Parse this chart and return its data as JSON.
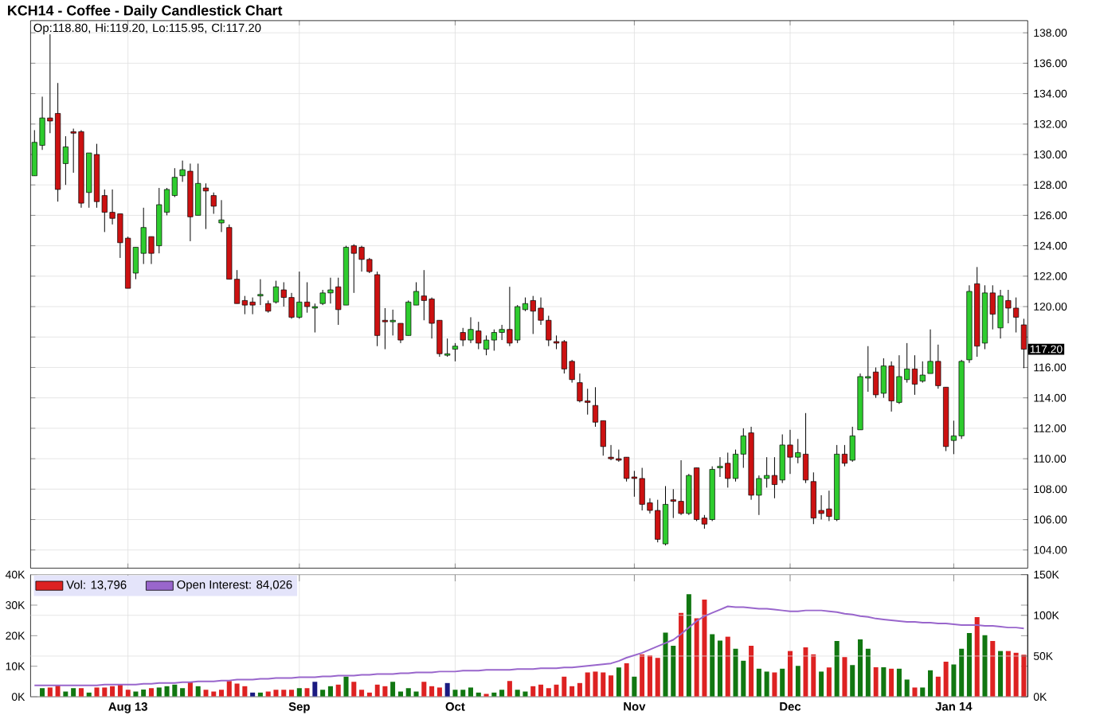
{
  "chart_data": [
    {
      "type": "candlestick",
      "title": "KCH14 - Coffee - Daily Candlestick Chart",
      "categories": [
        null,
        null,
        null,
        null,
        null,
        null,
        null,
        null,
        null,
        null,
        null,
        null,
        null,
        null,
        null,
        null,
        null,
        null,
        null,
        null,
        null,
        null,
        null,
        null,
        null,
        null,
        null,
        null,
        null,
        null,
        null,
        null,
        null,
        null,
        null,
        null,
        null,
        null,
        null,
        null,
        null,
        null,
        null,
        null,
        null,
        null,
        null,
        null,
        null,
        null,
        null,
        null,
        null,
        null,
        null,
        null,
        null,
        null,
        null,
        null,
        null,
        null,
        null,
        null,
        null,
        null,
        null,
        null,
        null,
        null,
        null,
        null,
        null,
        null,
        null,
        null,
        null,
        null,
        null,
        null,
        null,
        null,
        null,
        null,
        null,
        null,
        null,
        null,
        null,
        null,
        null,
        null,
        null,
        null,
        null,
        null,
        null,
        null,
        null,
        null,
        null,
        null,
        null,
        null,
        null,
        null,
        null,
        null,
        null,
        null,
        null,
        null,
        null,
        null,
        null,
        null,
        null,
        null,
        null,
        null,
        null,
        null,
        null,
        null,
        null,
        null,
        null,
        null
      ],
      "ohlc": [
        [
          128.6,
          131.6,
          128.6,
          130.8
        ],
        [
          130.6,
          133.8,
          130.3,
          132.4
        ],
        [
          132.4,
          137.9,
          131.4,
          132.2
        ],
        [
          132.7,
          134.7,
          126.9,
          127.7
        ],
        [
          129.4,
          131.2,
          128.0,
          130.5
        ],
        [
          131.5,
          131.7,
          128.8,
          131.4
        ],
        [
          131.5,
          131.6,
          126.5,
          126.8
        ],
        [
          127.5,
          130.1,
          126.5,
          130.1
        ],
        [
          130.0,
          130.7,
          126.5,
          126.9
        ],
        [
          127.3,
          127.7,
          124.9,
          126.2
        ],
        [
          126.2,
          127.7,
          125.4,
          125.8
        ],
        [
          126.1,
          126.1,
          123.2,
          124.2
        ],
        [
          124.5,
          124.6,
          121.2,
          121.2
        ],
        [
          122.2,
          123.9,
          121.8,
          123.9
        ],
        [
          123.5,
          126.5,
          122.8,
          125.2
        ],
        [
          124.6,
          124.6,
          122.8,
          123.5
        ],
        [
          124.0,
          127.8,
          123.5,
          126.7
        ],
        [
          126.2,
          127.8,
          126.0,
          127.7
        ],
        [
          127.3,
          129.1,
          127.2,
          128.5
        ],
        [
          128.6,
          129.6,
          128.2,
          129.0
        ],
        [
          128.9,
          129.4,
          124.3,
          125.9
        ],
        [
          126.0,
          129.4,
          126.0,
          128.1
        ],
        [
          127.8,
          128.1,
          125.1,
          127.6
        ],
        [
          127.3,
          127.5,
          126.1,
          126.6
        ],
        [
          125.5,
          127.0,
          124.9,
          125.7
        ],
        [
          125.2,
          125.4,
          121.8,
          121.8
        ],
        [
          121.8,
          122.4,
          120.2,
          120.2
        ],
        [
          120.4,
          120.7,
          119.5,
          120.1
        ],
        [
          120.3,
          120.6,
          119.5,
          120.1
        ],
        [
          120.7,
          121.8,
          120.1,
          120.8
        ],
        [
          120.2,
          120.4,
          119.6,
          119.7
        ],
        [
          120.3,
          121.7,
          120.2,
          121.3
        ],
        [
          121.1,
          121.6,
          120.0,
          120.6
        ],
        [
          120.6,
          120.9,
          119.2,
          119.3
        ],
        [
          119.3,
          122.3,
          119.2,
          120.3
        ],
        [
          120.3,
          121.6,
          119.6,
          120.0
        ],
        [
          119.9,
          120.2,
          118.3,
          120.0
        ],
        [
          120.2,
          121.1,
          120.1,
          120.9
        ],
        [
          120.9,
          121.9,
          120.2,
          121.1
        ],
        [
          121.3,
          121.9,
          118.8,
          119.8
        ],
        [
          120.1,
          124.0,
          120.1,
          123.9
        ],
        [
          124.0,
          124.1,
          120.9,
          123.5
        ],
        [
          123.9,
          124.0,
          122.3,
          123.1
        ],
        [
          123.1,
          123.2,
          122.2,
          122.3
        ],
        [
          122.1,
          122.3,
          117.4,
          118.1
        ],
        [
          119.1,
          119.9,
          117.2,
          119.0
        ],
        [
          119.0,
          119.8,
          118.1,
          119.1
        ],
        [
          118.9,
          118.9,
          117.6,
          117.8
        ],
        [
          118.1,
          120.4,
          118.1,
          120.3
        ],
        [
          120.1,
          121.6,
          120.1,
          121.0
        ],
        [
          120.7,
          122.4,
          119.1,
          120.4
        ],
        [
          120.5,
          120.6,
          117.9,
          118.9
        ],
        [
          119.1,
          119.1,
          116.7,
          116.9
        ],
        [
          116.8,
          117.9,
          116.7,
          116.9
        ],
        [
          117.2,
          117.6,
          116.4,
          117.4
        ],
        [
          118.3,
          118.6,
          117.4,
          117.8
        ],
        [
          117.8,
          119.3,
          117.6,
          118.5
        ],
        [
          118.4,
          119.0,
          117.2,
          117.6
        ],
        [
          117.2,
          118.1,
          116.8,
          117.8
        ],
        [
          117.8,
          118.5,
          117.1,
          118.3
        ],
        [
          118.3,
          118.8,
          117.8,
          118.5
        ],
        [
          118.5,
          121.3,
          117.4,
          117.6
        ],
        [
          117.8,
          120.1,
          117.6,
          120.0
        ],
        [
          119.8,
          120.6,
          119.7,
          120.2
        ],
        [
          120.4,
          120.7,
          118.2,
          119.7
        ],
        [
          119.9,
          120.6,
          118.8,
          119.1
        ],
        [
          119.1,
          119.4,
          117.4,
          117.8
        ],
        [
          117.7,
          118.1,
          117.2,
          117.6
        ],
        [
          117.7,
          117.8,
          115.6,
          115.9
        ],
        [
          116.4,
          116.5,
          115.0,
          115.2
        ],
        [
          115.0,
          115.6,
          113.7,
          113.8
        ],
        [
          113.8,
          114.6,
          112.9,
          113.7
        ],
        [
          113.5,
          114.7,
          112.1,
          112.4
        ],
        [
          112.5,
          112.5,
          110.2,
          110.8
        ],
        [
          110.1,
          110.9,
          109.9,
          110.0
        ],
        [
          110.0,
          110.6,
          109.8,
          109.9
        ],
        [
          110.1,
          110.1,
          108.5,
          108.7
        ],
        [
          108.8,
          109.2,
          107.5,
          108.7
        ],
        [
          108.7,
          109.4,
          106.6,
          107.0
        ],
        [
          107.1,
          107.4,
          106.4,
          106.6
        ],
        [
          106.6,
          107.3,
          104.5,
          104.7
        ],
        [
          104.4,
          108.2,
          104.3,
          107.0
        ],
        [
          107.3,
          108.0,
          106.1,
          107.2
        ],
        [
          107.2,
          109.9,
          106.3,
          106.4
        ],
        [
          106.4,
          109.0,
          106.3,
          108.9
        ],
        [
          109.4,
          109.4,
          105.9,
          106.0
        ],
        [
          106.1,
          106.3,
          105.4,
          105.7
        ],
        [
          106.0,
          109.5,
          105.9,
          109.3
        ],
        [
          109.4,
          110.1,
          108.8,
          109.5
        ],
        [
          109.7,
          110.4,
          108.1,
          108.7
        ],
        [
          108.7,
          110.6,
          108.5,
          110.3
        ],
        [
          110.3,
          112.0,
          109.4,
          111.5
        ],
        [
          111.7,
          112.1,
          107.3,
          107.6
        ],
        [
          107.6,
          108.9,
          106.3,
          108.7
        ],
        [
          108.7,
          110.1,
          108.1,
          108.9
        ],
        [
          108.9,
          110.1,
          107.4,
          108.3
        ],
        [
          108.6,
          111.6,
          108.4,
          110.9
        ],
        [
          110.9,
          111.9,
          109.0,
          110.1
        ],
        [
          110.1,
          111.3,
          109.7,
          110.4
        ],
        [
          110.3,
          113.0,
          108.4,
          108.6
        ],
        [
          108.5,
          109.1,
          105.7,
          106.1
        ],
        [
          106.6,
          107.6,
          106.0,
          106.4
        ],
        [
          106.7,
          107.9,
          105.9,
          106.2
        ],
        [
          106.0,
          110.9,
          105.9,
          110.3
        ],
        [
          110.3,
          110.9,
          109.5,
          109.7
        ],
        [
          109.9,
          112.1,
          109.8,
          111.5
        ],
        [
          111.9,
          115.6,
          111.9,
          115.4
        ],
        [
          115.3,
          117.4,
          114.4,
          115.4
        ],
        [
          115.7,
          116.0,
          114.0,
          114.2
        ],
        [
          114.3,
          116.6,
          114.0,
          116.1
        ],
        [
          116.1,
          116.4,
          113.1,
          113.8
        ],
        [
          113.7,
          116.8,
          113.6,
          115.4
        ],
        [
          115.2,
          117.6,
          115.0,
          115.9
        ],
        [
          115.9,
          116.8,
          114.2,
          114.9
        ],
        [
          115.1,
          116.4,
          115.0,
          115.5
        ],
        [
          115.6,
          118.5,
          115.6,
          116.4
        ],
        [
          116.4,
          117.5,
          114.6,
          114.8
        ],
        [
          114.7,
          114.7,
          110.5,
          110.8
        ],
        [
          111.2,
          112.5,
          110.3,
          111.5
        ],
        [
          111.5,
          116.5,
          111.3,
          116.4
        ],
        [
          116.5,
          121.4,
          116.3,
          121.0
        ],
        [
          121.5,
          122.6,
          116.7,
          117.4
        ],
        [
          117.6,
          121.4,
          117.2,
          120.9
        ],
        [
          120.9,
          121.4,
          118.5,
          119.5
        ],
        [
          118.6,
          121.1,
          117.9,
          120.7
        ],
        [
          120.4,
          121.1,
          118.9,
          119.9
        ],
        [
          119.9,
          120.6,
          118.3,
          119.3
        ],
        [
          118.8,
          119.2,
          115.95,
          117.2
        ]
      ],
      "ylim": [
        102.8,
        138.8
      ],
      "yticks": [
        {
          "value": 104,
          "label": "104.00"
        },
        {
          "value": 106,
          "label": "106.00"
        },
        {
          "value": 108,
          "label": "108.00"
        },
        {
          "value": 110,
          "label": "110.00"
        },
        {
          "value": 112,
          "label": "112.00"
        },
        {
          "value": 114,
          "label": "114.00"
        },
        {
          "value": 116,
          "label": "116.00"
        },
        {
          "value": 118,
          "label": null
        },
        {
          "value": 120,
          "label": "120.00"
        },
        {
          "value": 122,
          "label": "122.00"
        },
        {
          "value": 124,
          "label": "124.00"
        },
        {
          "value": 126,
          "label": "126.00"
        },
        {
          "value": 128,
          "label": "128.00"
        },
        {
          "value": 130,
          "label": "130.00"
        },
        {
          "value": 132,
          "label": "132.00"
        },
        {
          "value": 134,
          "label": "134.00"
        },
        {
          "value": 136,
          "label": "136.00"
        },
        {
          "value": 138,
          "label": "138.00"
        }
      ],
      "grid": true,
      "tick_labels": "y",
      "annotations": [
        "Op:118.80, Hi:119.20, Lo:115.95, Cl:117.20",
        "117.20"
      ]
    },
    {
      "type": "bar",
      "categories": [
        null,
        null,
        null,
        null,
        null,
        null,
        null,
        null,
        null,
        null,
        null,
        null,
        "Aug 13",
        null,
        null,
        null,
        null,
        null,
        null,
        null,
        null,
        null,
        null,
        null,
        null,
        null,
        null,
        null,
        null,
        null,
        null,
        null,
        null,
        null,
        "Sep",
        null,
        null,
        null,
        null,
        null,
        null,
        null,
        null,
        null,
        null,
        null,
        null,
        null,
        null,
        null,
        null,
        null,
        null,
        null,
        "Oct",
        null,
        null,
        null,
        null,
        null,
        null,
        null,
        null,
        null,
        null,
        null,
        null,
        null,
        null,
        null,
        null,
        null,
        null,
        null,
        null,
        null,
        null,
        "Nov",
        null,
        null,
        null,
        null,
        null,
        null,
        null,
        null,
        null,
        null,
        null,
        null,
        null,
        null,
        null,
        null,
        null,
        null,
        null,
        "Dec",
        null,
        null,
        null,
        null,
        null,
        null,
        null,
        null,
        null,
        null,
        null,
        null,
        null,
        null,
        null,
        null,
        null,
        null,
        null,
        null,
        "Jan 14",
        null,
        null,
        null,
        null,
        null,
        null,
        null,
        null,
        null
      ],
      "series": [
        {
          "name": "Vol: 13,796",
          "color": "#dd2222",
          "values": [
            null,
            2.8,
            3.1,
            3.7,
            1.7,
            2.8,
            2.8,
            1.4,
            3.1,
            3.1,
            3.5,
            4.0,
            2.3,
            1.7,
            2.4,
            2.8,
            3.1,
            3.5,
            4.0,
            2.8,
            4.9,
            3.5,
            2.3,
            1.7,
            2.3,
            5.2,
            4.3,
            3.5,
            1.4,
            1.4,
            1.7,
            2.3,
            2.3,
            2.3,
            2.8,
            2.8,
            4.9,
            2.3,
            3.5,
            4.0,
            6.6,
            4.9,
            2.3,
            1.4,
            4.0,
            3.5,
            4.9,
            1.7,
            2.8,
            1.7,
            4.9,
            3.5,
            3.1,
            4.5,
            2.3,
            2.3,
            3.1,
            1.4,
            1.0,
            1.4,
            2.3,
            5.2,
            2.3,
            1.7,
            3.5,
            4.0,
            2.8,
            4.0,
            6.6,
            3.5,
            4.5,
            8.0,
            8.3,
            8.0,
            7.0,
            9.6,
            11.0,
            6.6,
            13.9,
            13.6,
            12.7,
            21.0,
            16.7,
            27.5,
            33.6,
            25.7,
            31.8,
            20.5,
            18.4,
            19.7,
            15.7,
            11.8,
            16.7,
            9.2,
            8.3,
            8.0,
            9.2,
            15.0,
            10.1,
            16.2,
            13.9,
            8.3,
            9.6,
            18.3,
            13.0,
            10.4,
            18.8,
            15.7,
            9.7,
            9.7,
            9.2,
            9.2,
            5.7,
            3.1,
            3.1,
            8.7,
            6.6,
            11.5,
            10.6,
            15.7,
            20.9,
            26.1,
            20.2,
            18.3,
            15.0,
            15.0,
            14.4,
            13.8
          ],
          "colors": [
            null,
            "#117711",
            "#dd2222",
            "#dd2222",
            "#117711",
            "#117711",
            "#dd2222",
            "#117711",
            "#dd2222",
            "#dd2222",
            "#dd2222",
            "#dd2222",
            "#dd2222",
            "#117711",
            "#117711",
            "#dd2222",
            "#117711",
            "#117711",
            "#117711",
            "#117711",
            "#dd2222",
            "#117711",
            "#dd2222",
            "#dd2222",
            "#dd2222",
            "#dd2222",
            "#dd2222",
            "#dd2222",
            "#1a1a80",
            "#117711",
            "#dd2222",
            "#dd2222",
            "#dd2222",
            "#dd2222",
            "#117711",
            "#dd2222",
            "#1a1a80",
            "#117711",
            "#117711",
            "#dd2222",
            "#117711",
            "#dd2222",
            "#dd2222",
            "#dd2222",
            "#dd2222",
            "#dd2222",
            "#117711",
            "#117711",
            "#117711",
            "#117711",
            "#dd2222",
            "#dd2222",
            "#dd2222",
            "#1a1a80",
            "#117711",
            "#117711",
            "#117711",
            "#117711",
            "#dd2222",
            "#117711",
            "#117711",
            "#dd2222",
            "#117711",
            "#117711",
            "#dd2222",
            "#dd2222",
            "#dd2222",
            "#dd2222",
            "#dd2222",
            "#dd2222",
            "#dd2222",
            "#dd2222",
            "#dd2222",
            "#dd2222",
            "#dd2222",
            "#117711",
            "#dd2222",
            "#117711",
            "#dd2222",
            "#dd2222",
            "#dd2222",
            "#117711",
            "#117711",
            "#dd2222",
            "#117711",
            "#dd2222",
            "#dd2222",
            "#117711",
            "#117711",
            "#dd2222",
            "#117711",
            "#117711",
            "#dd2222",
            "#117711",
            "#117711",
            "#dd2222",
            "#117711",
            "#dd2222",
            "#117711",
            "#dd2222",
            "#dd2222",
            "#117711",
            "#dd2222",
            "#117711",
            "#dd2222",
            "#117711",
            "#117711",
            "#117711",
            "#dd2222",
            "#117711",
            "#dd2222",
            "#117711",
            "#117711",
            "#dd2222",
            "#117711",
            "#117711",
            "#dd2222",
            "#dd2222",
            "#117711",
            "#117711",
            "#117711",
            "#dd2222",
            "#117711",
            "#dd2222",
            "#117711",
            "#dd2222",
            "#dd2222",
            "#dd2222"
          ]
        },
        {
          "name": "Open Interest: 84,026",
          "type": "line",
          "axis": "y2",
          "color": "#9966cc",
          "values": [
            14,
            14,
            14,
            14,
            14,
            14,
            14,
            14,
            14,
            15,
            15,
            15,
            15,
            15,
            16,
            16,
            17,
            17,
            17,
            18,
            18,
            19,
            19,
            19,
            20,
            20,
            21,
            21,
            21,
            22,
            22,
            23,
            23,
            23,
            24,
            24,
            24,
            25,
            25,
            26,
            26,
            26,
            27,
            27,
            28,
            28,
            28,
            29,
            29,
            30,
            30,
            30,
            31,
            31,
            31,
            32,
            32,
            32,
            33,
            33,
            33,
            33,
            34,
            34,
            34,
            35,
            35,
            35,
            36,
            36,
            37,
            38,
            39,
            40,
            41,
            44,
            48,
            51,
            54,
            58,
            62,
            66,
            70,
            77,
            85,
            93,
            99,
            103,
            107,
            111,
            110,
            110,
            109,
            108,
            108,
            107,
            106,
            105,
            105,
            106,
            106,
            106,
            105,
            104,
            102,
            101,
            99,
            98,
            96,
            95,
            94,
            93,
            92,
            92,
            91,
            91,
            90,
            90,
            89,
            88,
            88,
            88,
            87,
            87,
            86,
            85,
            85,
            84
          ]
        }
      ],
      "ylim": [
        0,
        40
      ],
      "yticks": [
        {
          "value": 0,
          "label": "0K"
        },
        {
          "value": 10,
          "label": "10K"
        },
        {
          "value": 20,
          "label": "20K"
        },
        {
          "value": 30,
          "label": "30K"
        },
        {
          "value": 40,
          "label": "40K"
        }
      ],
      "y2lim": [
        0,
        150
      ],
      "y2ticks": [
        {
          "value": 0,
          "label": "0K"
        },
        {
          "value": 50,
          "label": "50K"
        },
        {
          "value": 100,
          "label": "100K"
        },
        {
          "value": 150,
          "label": "150K"
        }
      ],
      "grid": true,
      "legend": "top left"
    }
  ]
}
